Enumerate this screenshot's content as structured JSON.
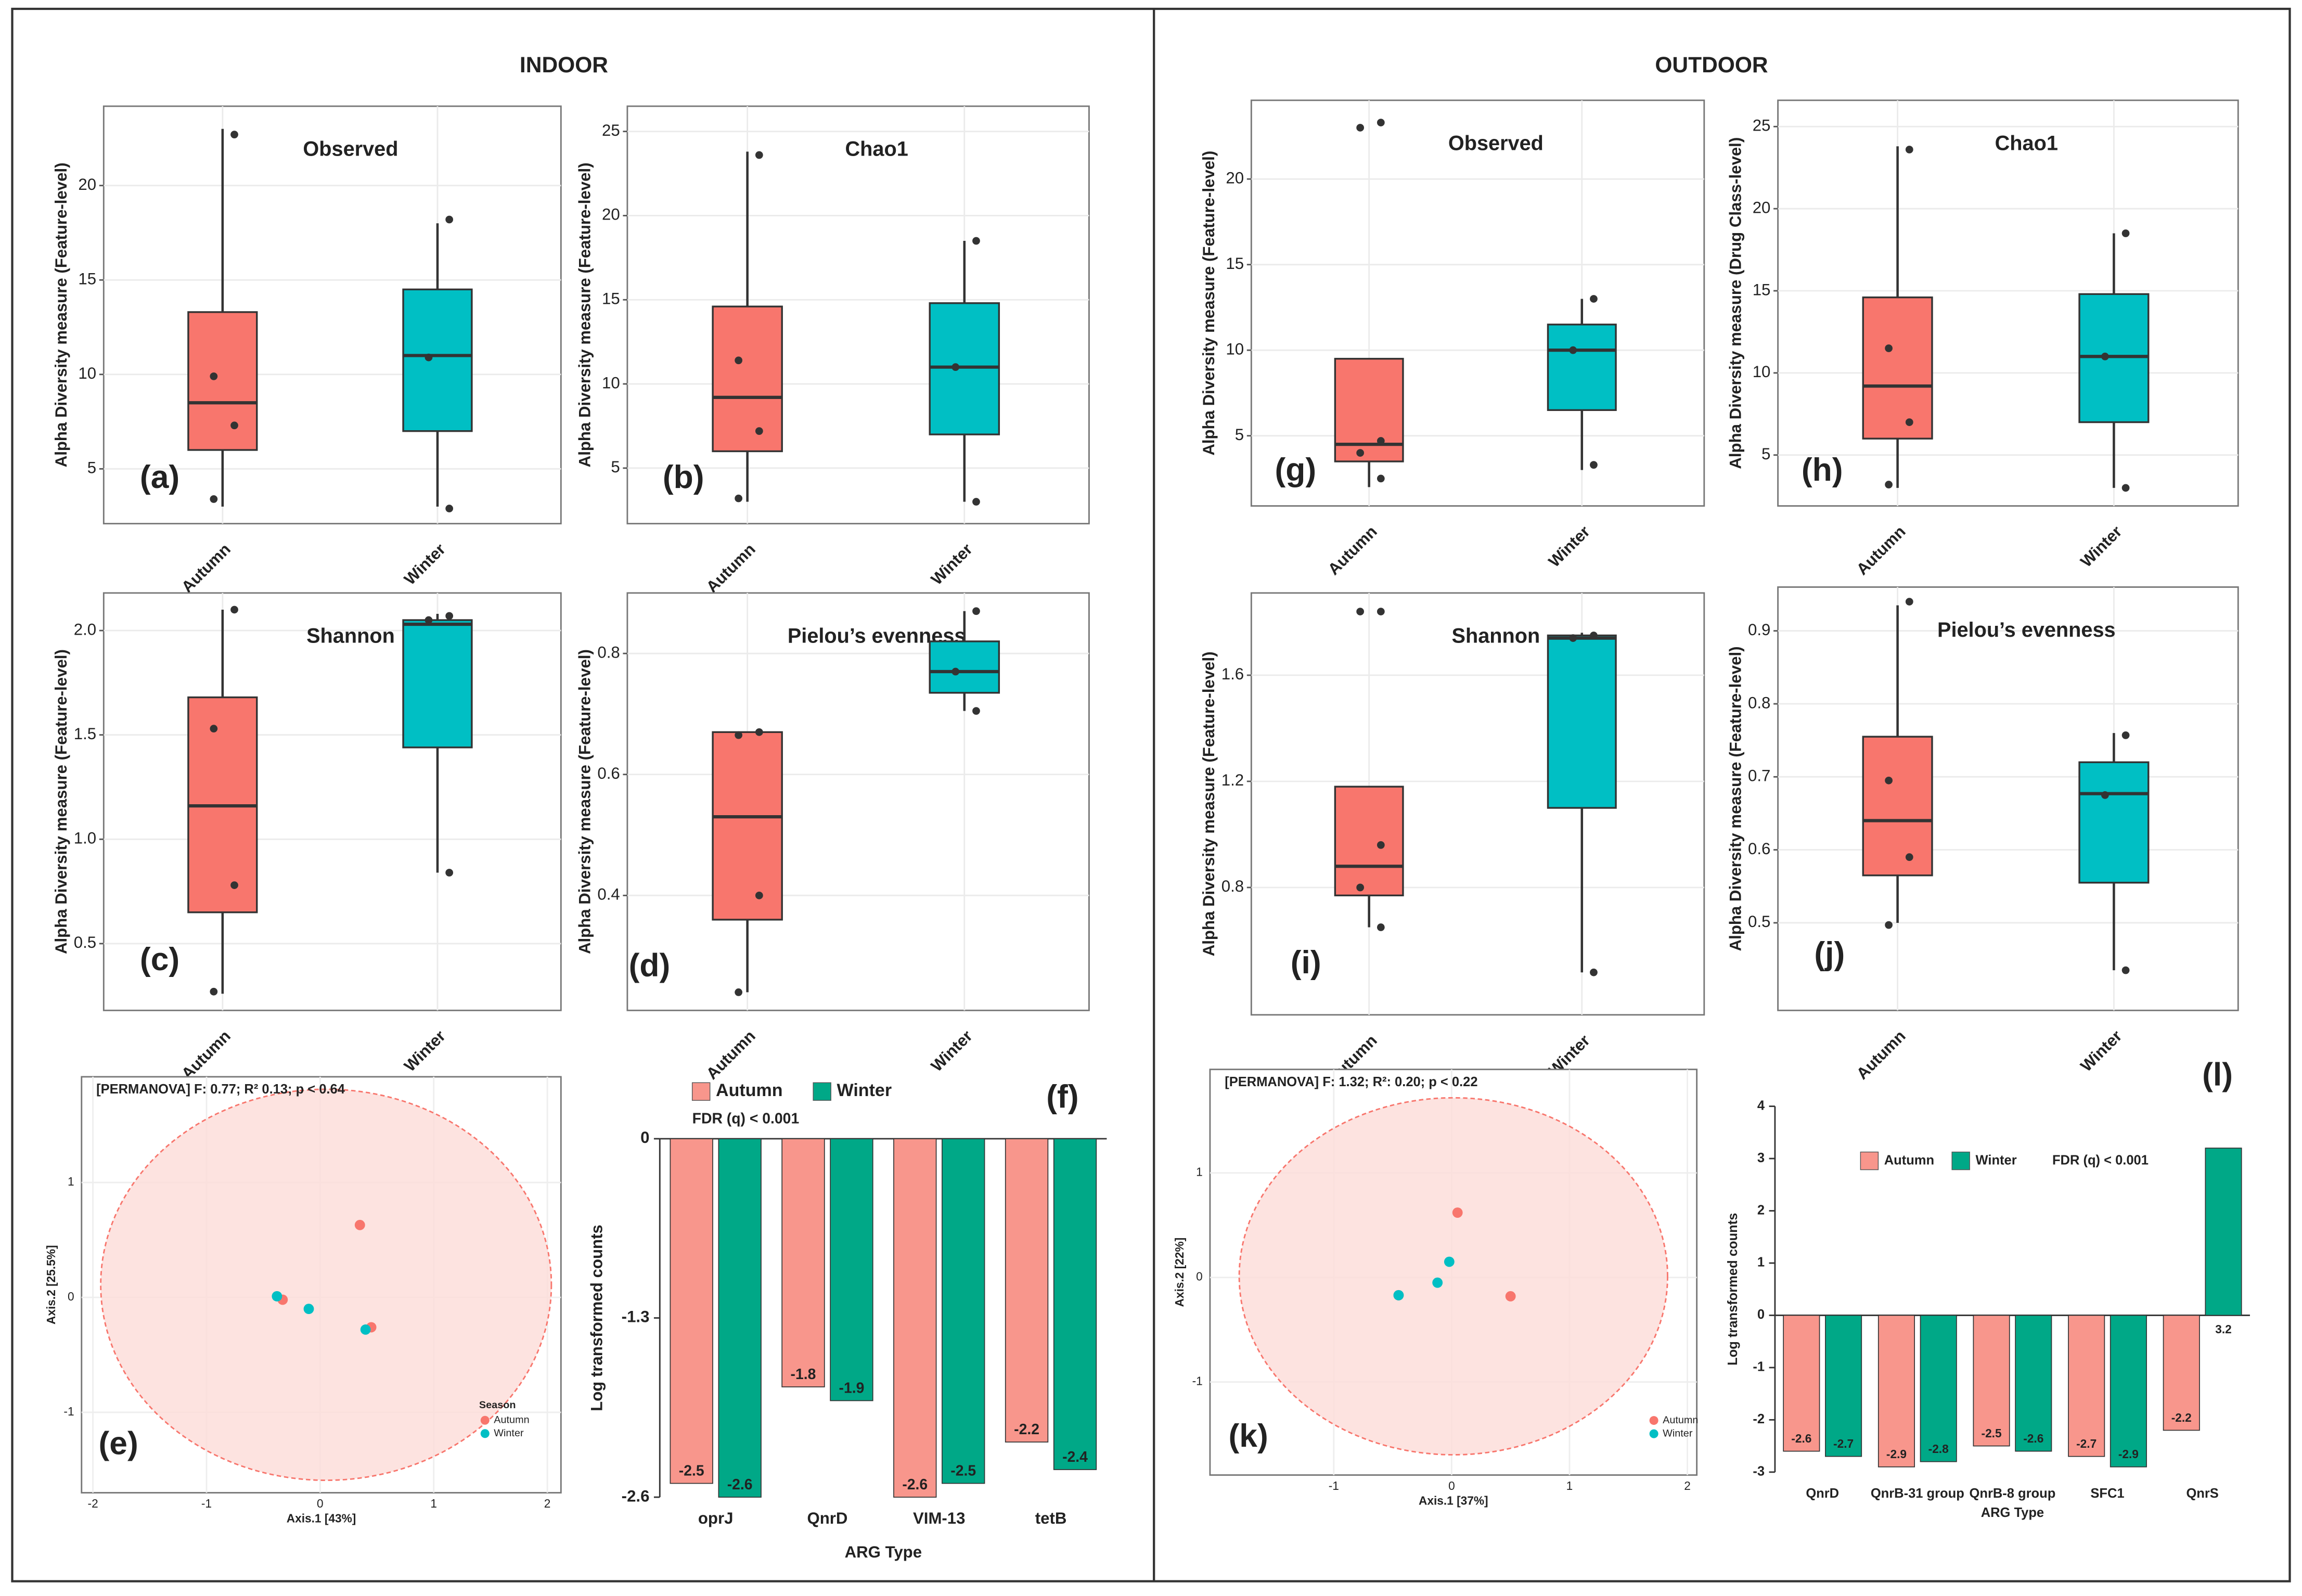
{
  "sections": [
    "INDOOR",
    "OUTDOOR"
  ],
  "chart_data": [
    {
      "type": "box",
      "title": "Observed",
      "panel": "(a)",
      "ylabel": "Alpha Diversity measure (Feature-level)",
      "categories": [
        "Autumn",
        "Winter"
      ],
      "colors": [
        "#f8766d",
        "#00bfc4"
      ],
      "ylim": [
        2.1,
        24.2
      ],
      "yticks": [
        5,
        10,
        15,
        20
      ],
      "grid": true,
      "boxes": [
        {
          "min": 3,
          "q1": 6,
          "median": 8.5,
          "q3": 13.3,
          "max": 23,
          "points": [
            22.7,
            9.9,
            7.3,
            3.4
          ]
        },
        {
          "min": 3,
          "q1": 7,
          "median": 11,
          "q3": 14.5,
          "max": 18,
          "points": [
            18.2,
            10.9,
            2.9
          ]
        }
      ]
    },
    {
      "type": "box",
      "title": "Chao1",
      "panel": "(b)",
      "ylabel": "Alpha Diversity measure (Feature-level)",
      "categories": [
        "Autumn",
        "Winter"
      ],
      "colors": [
        "#f8766d",
        "#00bfc4"
      ],
      "ylim": [
        1.7,
        26.5
      ],
      "yticks": [
        5,
        10,
        15,
        20,
        25
      ],
      "grid": true,
      "boxes": [
        {
          "min": 3,
          "q1": 6,
          "median": 9.2,
          "q3": 14.6,
          "max": 23.8,
          "points": [
            23.6,
            11.4,
            7.2,
            3.2
          ]
        },
        {
          "min": 3,
          "q1": 7,
          "median": 11,
          "q3": 14.8,
          "max": 18.5,
          "points": [
            18.5,
            11,
            3
          ]
        }
      ]
    },
    {
      "type": "box",
      "title": "Shannon",
      "panel": "(c)",
      "ylabel": "Alpha Diversity measure (Feature-level)",
      "categories": [
        "Autumn",
        "Winter"
      ],
      "colors": [
        "#f8766d",
        "#00bfc4"
      ],
      "ylim": [
        0.18,
        2.18
      ],
      "yticks": [
        0.5,
        {
          "value": 1,
          "label": "1.0"
        },
        1.5,
        {
          "value": 2,
          "label": "2.0"
        }
      ],
      "grid": true,
      "boxes": [
        {
          "min": 0.26,
          "q1": 0.65,
          "median": 1.16,
          "q3": 1.68,
          "max": 2.1,
          "points": [
            2.1,
            1.53,
            0.78,
            0.27
          ]
        },
        {
          "min": 0.84,
          "q1": 1.44,
          "median": 2.03,
          "q3": 2.05,
          "max": 2.08,
          "points": [
            2.07,
            2.05,
            0.84
          ]
        }
      ]
    },
    {
      "type": "box",
      "title": "Pielou’s evenness",
      "panel": "(d)",
      "ylabel": "Alpha Diversity measure (Feature-level)",
      "categories": [
        "Autumn",
        "Winter"
      ],
      "colors": [
        "#f8766d",
        "#00bfc4"
      ],
      "ylim": [
        0.21,
        0.9
      ],
      "yticks": [
        0.4,
        0.6,
        0.8
      ],
      "grid": true,
      "boxes": [
        {
          "min": 0.24,
          "q1": 0.36,
          "median": 0.53,
          "q3": 0.67,
          "max": 0.67,
          "points": [
            0.67,
            0.665,
            0.4,
            0.24
          ]
        },
        {
          "min": 0.705,
          "q1": 0.735,
          "median": 0.77,
          "q3": 0.82,
          "max": 0.87,
          "points": [
            0.87,
            0.77,
            0.705
          ]
        }
      ]
    },
    {
      "type": "scatter",
      "panel": "(e)",
      "annotation": "[PERMANOVA] F: 0.77; R² 0.13; p < 0.64",
      "xlabel": "Axis.1   [43%]",
      "ylabel": "Axis.2   [25.5%]",
      "legend_title": "Season",
      "xlim": [
        -2.1,
        2.12
      ],
      "xticks": [
        -2,
        -1,
        0,
        1,
        2
      ],
      "ylim": [
        -1.7,
        1.92
      ],
      "yticks": [
        -1,
        0,
        1
      ],
      "grid": true,
      "series": [
        {
          "name": "Autumn",
          "color": "#f8766d",
          "x": [
            0.35,
            -0.33,
            0.45
          ],
          "y": [
            0.63,
            -0.02,
            -0.26
          ]
        },
        {
          "name": "Winter",
          "color": "#00bfc4",
          "x": [
            -0.38,
            -0.1,
            0.4
          ],
          "y": [
            0.01,
            -0.1,
            -0.28
          ]
        }
      ]
    },
    {
      "type": "bar",
      "panel": "(f)",
      "annotation": "FDR (q) < 0.001",
      "xlabel": "ARG Type",
      "ylabel": "Log transformed counts",
      "legend": "top",
      "categories": [
        "oprJ",
        "QnrD",
        "VIM-13",
        "tetB"
      ],
      "ylim": [
        -2.6,
        0
      ],
      "yticks": [
        0,
        -1.3,
        -2.6
      ],
      "series": [
        {
          "name": "Autumn",
          "color": "#f8968c",
          "values": [
            -2.5,
            -1.8,
            -2.6,
            -2.2
          ]
        },
        {
          "name": "Winter",
          "color": "#00a887",
          "values": [
            -2.6,
            -1.9,
            -2.5,
            -2.4
          ]
        }
      ]
    },
    {
      "type": "box",
      "title": "Observed",
      "panel": "(g)",
      "ylabel": "Alpha Diversity measure (Feature-level)",
      "categories": [
        "Autumn",
        "Winter"
      ],
      "colors": [
        "#f8766d",
        "#00bfc4"
      ],
      "ylim": [
        0.9,
        24.6
      ],
      "yticks": [
        5,
        10,
        15,
        20
      ],
      "grid": true,
      "boxes": [
        {
          "min": 2,
          "q1": 3.5,
          "median": 4.5,
          "q3": 9.5,
          "max": 9.5,
          "points": [
            23.3,
            23,
            4.7,
            4,
            2.5
          ]
        },
        {
          "min": 3,
          "q1": 6.5,
          "median": 10,
          "q3": 11.5,
          "max": 13,
          "points": [
            13,
            10,
            3.3
          ]
        }
      ]
    },
    {
      "type": "box",
      "title": "Chao1",
      "panel": "(h)",
      "ylabel": "Alpha Diversity measure (Drug Class-level)",
      "categories": [
        "Autumn",
        "Winter"
      ],
      "colors": [
        "#f8766d",
        "#00bfc4"
      ],
      "ylim": [
        1.9,
        26.6
      ],
      "yticks": [
        5,
        10,
        15,
        20,
        25
      ],
      "grid": true,
      "boxes": [
        {
          "min": 3,
          "q1": 6,
          "median": 9.2,
          "q3": 14.6,
          "max": 23.8,
          "points": [
            23.6,
            11.5,
            7,
            3.2
          ]
        },
        {
          "min": 3,
          "q1": 7,
          "median": 11,
          "q3": 14.8,
          "max": 18.5,
          "points": [
            18.5,
            11,
            3
          ]
        }
      ]
    },
    {
      "type": "box",
      "title": "Shannon",
      "panel": "(i)",
      "ylabel": "Alpha Diversity measure (Feature-level)",
      "categories": [
        "Autumn",
        "Winter"
      ],
      "colors": [
        "#f8766d",
        "#00bfc4"
      ],
      "ylim": [
        0.32,
        1.91
      ],
      "yticks": [
        0.8,
        1.2,
        1.6
      ],
      "grid": true,
      "boxes": [
        {
          "min": 0.65,
          "q1": 0.77,
          "median": 0.88,
          "q3": 1.18,
          "max": 1.18,
          "points": [
            1.84,
            1.84,
            0.96,
            0.8,
            0.65
          ]
        },
        {
          "min": 0.48,
          "q1": 1.1,
          "median": 1.74,
          "q3": 1.75,
          "max": 1.76,
          "points": [
            1.75,
            1.74,
            0.48
          ]
        }
      ]
    },
    {
      "type": "box",
      "title": "Pielou’s evenness",
      "panel": "(j)",
      "ylabel": "Alpha Diversity measure (Feature-level)",
      "categories": [
        "Autumn",
        "Winter"
      ],
      "colors": [
        "#f8766d",
        "#00bfc4"
      ],
      "ylim": [
        0.38,
        0.96
      ],
      "yticks": [
        0.5,
        0.6,
        0.7,
        0.8,
        0.9
      ],
      "grid": true,
      "boxes": [
        {
          "min": 0.5,
          "q1": 0.565,
          "median": 0.64,
          "q3": 0.755,
          "max": 0.935,
          "points": [
            0.94,
            0.695,
            0.59,
            0.497
          ]
        },
        {
          "min": 0.435,
          "q1": 0.555,
          "median": 0.677,
          "q3": 0.72,
          "max": 0.76,
          "points": [
            0.757,
            0.675,
            0.435
          ]
        }
      ]
    },
    {
      "type": "scatter",
      "panel": "(k)",
      "annotation": "[PERMANOVA] F: 1.32; R²: 0.20; p < 0.22",
      "xlabel": "Axis.1   [37%]",
      "ylabel": "Axis.2   [22%]",
      "xlim": [
        -2.05,
        2.08
      ],
      "xticks": [
        -1,
        0,
        1,
        2
      ],
      "ylim": [
        -1.89,
        1.99
      ],
      "yticks": [
        -1,
        0,
        1
      ],
      "grid": true,
      "series": [
        {
          "name": "Autumn",
          "color": "#f8766d",
          "x": [
            0.05,
            0.5,
            -0.45
          ],
          "y": [
            0.62,
            -0.18,
            -0.17
          ]
        },
        {
          "name": "Winter",
          "color": "#00bfc4",
          "x": [
            -0.45,
            -0.12,
            -0.02
          ],
          "y": [
            -0.17,
            -0.05,
            0.15
          ]
        }
      ]
    },
    {
      "type": "bar",
      "panel": "(l)",
      "annotation": "FDR (q) < 0.001",
      "xlabel": "ARG Type",
      "ylabel": "Log transformed counts",
      "legend": "inside-top",
      "categories": [
        "QnrD",
        "QnrB-31 group",
        "QnrB-8 group",
        "SFC1",
        "QnrS"
      ],
      "ylim": [
        -3,
        4
      ],
      "yticks": [
        -3,
        -2,
        -1,
        0,
        1,
        2,
        3,
        4
      ],
      "series": [
        {
          "name": "Autumn",
          "color": "#f8968c",
          "values": [
            -2.6,
            -2.9,
            -2.5,
            -2.7,
            -2.2
          ]
        },
        {
          "name": "Winter",
          "color": "#00a887",
          "values": [
            -2.7,
            -2.8,
            -2.6,
            -2.9,
            3.2
          ]
        }
      ]
    }
  ]
}
